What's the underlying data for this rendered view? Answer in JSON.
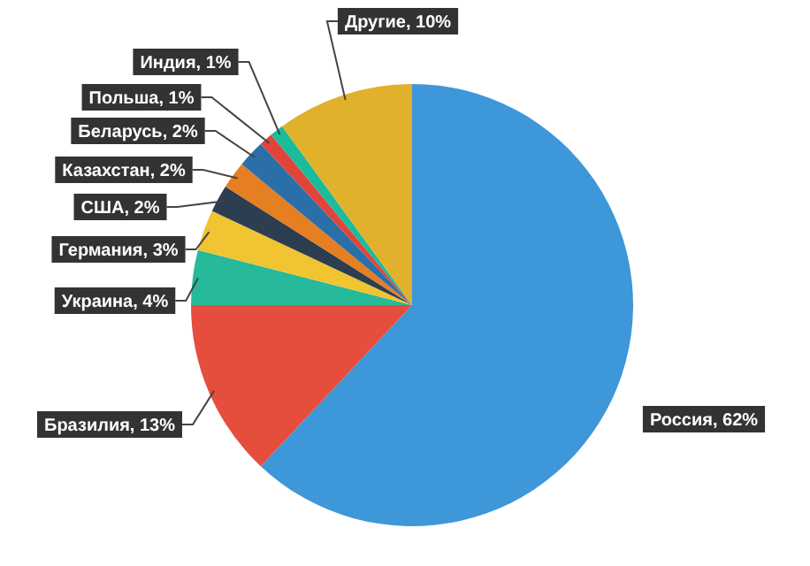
{
  "chart_data": {
    "type": "pie",
    "categories": [
      "Россия",
      "Бразилия",
      "Украина",
      "Германия",
      "США",
      "Казахстан",
      "Беларусь",
      "Польша",
      "Индия",
      "Другие"
    ],
    "values": [
      62,
      13,
      4,
      3,
      2,
      2,
      2,
      1,
      1,
      10
    ],
    "value_labels": [
      "62%",
      "13%",
      "4%",
      "3%",
      "2%",
      "2%",
      "2%",
      "1%",
      "1%",
      "10%"
    ],
    "colors": [
      "#3d97d8",
      "#e54d3c",
      "#26b99a",
      "#f0c531",
      "#2c3e50",
      "#e67e22",
      "#2a6fa8",
      "#e0443a",
      "#1bbc9b",
      "#e1b12c"
    ],
    "legend": false
  }
}
